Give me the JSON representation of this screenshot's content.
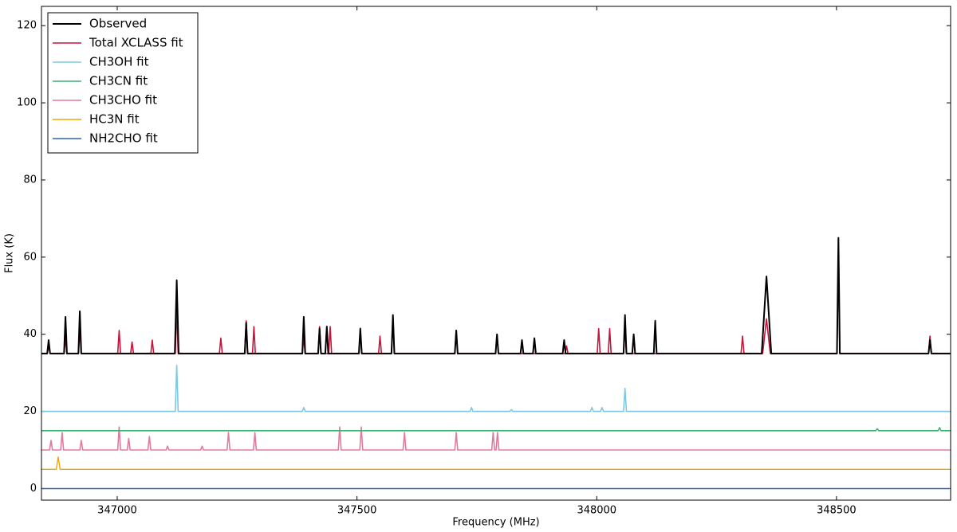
{
  "chart_data": {
    "type": "line",
    "xlabel": "Frequency (MHz)",
    "ylabel": "Flux (K)",
    "xlim": [
      346842,
      348738
    ],
    "ylim": [
      -3,
      125
    ],
    "xticks": [
      347000,
      347500,
      348000,
      348500
    ],
    "yticks": [
      0,
      20,
      40,
      60,
      80,
      100,
      120
    ],
    "legend": "upper left",
    "series": [
      {
        "name": "Observed",
        "color": "#000000",
        "width": 2,
        "x": [
          346842,
          346854,
          346857,
          346860,
          346889,
          346892,
          346895,
          346919,
          346922,
          346925,
          347120,
          347124,
          347128,
          347266,
          347269,
          347272,
          347386,
          347389,
          347392,
          347419,
          347422,
          347425,
          347434,
          347437,
          347440,
          347504,
          347507,
          347510,
          347572,
          347575,
          347578,
          347704,
          347707,
          347710,
          347789,
          347792,
          347795,
          347841,
          347844,
          347847,
          347867,
          347870,
          347873,
          347929,
          347932,
          347935,
          348056,
          348059,
          348062,
          348074,
          348077,
          348080,
          348119,
          348122,
          348125,
          348344,
          348354,
          348364,
          348501,
          348504,
          348507,
          348692,
          348695,
          348698,
          348738
        ],
        "values": [
          35,
          35,
          38.5,
          35,
          35,
          44.5,
          35,
          35,
          46,
          35,
          35,
          54,
          35,
          35,
          43,
          35,
          35,
          44.5,
          35,
          35,
          41.5,
          35,
          35,
          42,
          35,
          35,
          41.5,
          35,
          35,
          45,
          35,
          35,
          41,
          35,
          35,
          40,
          35,
          35,
          38.5,
          35,
          35,
          39,
          35,
          35,
          38.5,
          35,
          35,
          45,
          35,
          35,
          40,
          35,
          35,
          43.5,
          35,
          35,
          55,
          35,
          35,
          65,
          35,
          35,
          38.5,
          35,
          35
        ]
      },
      {
        "name": "Total XCLASS fit",
        "color": "#c8143c",
        "width": 1.6,
        "x": [
          346842,
          346854,
          346857,
          346860,
          346889,
          346892,
          346895,
          346919,
          346922,
          346925,
          347001,
          347004,
          347007,
          347028,
          347031,
          347034,
          347070,
          347073,
          347076,
          347121,
          347124,
          347127,
          347213,
          347216,
          347219,
          347266,
          347269,
          347272,
          347282,
          347285,
          347288,
          347386,
          347389,
          347392,
          347419,
          347422,
          347425,
          347441,
          347444,
          347447,
          347504,
          347507,
          347510,
          347545,
          347548,
          347551,
          347572,
          347575,
          347578,
          347704,
          347707,
          347710,
          347789,
          347792,
          347795,
          347934,
          347937,
          347940,
          348001,
          348004,
          348007,
          348024,
          348027,
          348030,
          348056,
          348059,
          348062,
          348301,
          348304,
          348307,
          348346,
          348354,
          348362,
          348501,
          348504,
          348507,
          348692,
          348695,
          348698,
          348738
        ],
        "values": [
          35,
          35,
          37,
          35,
          35,
          39,
          35,
          35,
          41,
          35,
          35,
          41,
          35,
          35,
          38,
          35,
          35,
          38.5,
          35,
          35,
          47,
          35,
          35,
          39,
          35,
          35,
          43.5,
          35,
          35,
          42,
          35,
          35,
          39,
          35,
          35,
          42,
          35,
          35,
          42,
          35,
          35,
          41,
          35,
          35,
          39.5,
          35,
          35,
          45,
          35,
          35,
          41,
          35,
          35,
          40,
          35,
          35,
          37,
          35,
          35,
          41.5,
          35,
          35,
          41.5,
          35,
          35,
          41.5,
          35,
          35,
          39.5,
          35,
          35,
          44,
          35,
          35,
          59,
          35,
          35,
          39.5,
          35,
          35
        ]
      },
      {
        "name": "CH3OH fit",
        "color": "#7ec8e3",
        "width": 1.6,
        "x": [
          346842,
          347121,
          347124,
          347127,
          347386,
          347389,
          347392,
          347736,
          347739,
          347742,
          347819,
          347822,
          347825,
          347987,
          347990,
          347993,
          348008,
          348011,
          348014,
          348056,
          348059,
          348062,
          348738
        ],
        "values": [
          20,
          20,
          32,
          20,
          20,
          21,
          20,
          20,
          21,
          20,
          20,
          20.5,
          20,
          20,
          21,
          20,
          20,
          21,
          20,
          20,
          26,
          20,
          20
        ]
      },
      {
        "name": "CH3CN fit",
        "color": "#3cb371",
        "width": 1.6,
        "x": [
          346842,
          348582,
          348585,
          348588,
          348712,
          348715,
          348718,
          348738
        ],
        "values": [
          15,
          15,
          15.5,
          15,
          15,
          15.8,
          15,
          15
        ]
      },
      {
        "name": "CH3CHO fit",
        "color": "#e07ba0",
        "width": 1.6,
        "x": [
          346842,
          346859,
          346862,
          346865,
          346882,
          346885,
          346888,
          346922,
          346925,
          346928,
          347001,
          347004,
          347007,
          347021,
          347024,
          347027,
          347064,
          347067,
          347070,
          347102,
          347105,
          347108,
          347174,
          347177,
          347180,
          347229,
          347232,
          347235,
          347284,
          347287,
          347290,
          347461,
          347464,
          347467,
          347506,
          347509,
          347512,
          347596,
          347599,
          347602,
          347704,
          347707,
          347710,
          347781,
          347784,
          347787,
          347790,
          347793,
          347796,
          348738
        ],
        "values": [
          10,
          10,
          12.5,
          10,
          10,
          14.5,
          10,
          10,
          12.5,
          10,
          10,
          16,
          10,
          10,
          13,
          10,
          10,
          13.5,
          10,
          10,
          11,
          10,
          10,
          11,
          10,
          10,
          14.5,
          10,
          10,
          14.5,
          10,
          10,
          16,
          10,
          10,
          16,
          10,
          10,
          14.5,
          10,
          10,
          14.5,
          10,
          10,
          14.5,
          10,
          10,
          14.5,
          10,
          10
        ]
      },
      {
        "name": "HC3N fit",
        "color": "#f0a500",
        "width": 1.4,
        "x": [
          346842,
          346873,
          346877,
          346881,
          348738
        ],
        "values": [
          5,
          5,
          8.2,
          5,
          5
        ]
      },
      {
        "name": "NH2CHO fit",
        "color": "#3060c0",
        "width": 1.4,
        "x": [
          346842,
          348738
        ],
        "values": [
          0,
          0
        ]
      }
    ]
  }
}
